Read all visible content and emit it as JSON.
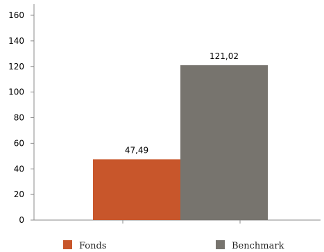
{
  "chart_data": {
    "type": "bar",
    "categories": [
      ""
    ],
    "series": [
      {
        "name": "Fonds",
        "values": [
          47.49
        ],
        "label": "47,49",
        "color": "#c8562b"
      },
      {
        "name": "Benchmark",
        "values": [
          121.02
        ],
        "label": "121,02",
        "color": "#77746e"
      }
    ],
    "title": "",
    "xlabel": "",
    "ylabel": "",
    "ylim": [
      0,
      160
    ],
    "yticks": [
      0,
      20,
      40,
      60,
      80,
      100,
      120,
      140,
      160
    ],
    "ytick_labels": [
      "0",
      "20",
      "40",
      "60",
      "80",
      "100",
      "120",
      "140",
      "160"
    ],
    "grid": false,
    "legend_position": "bottom"
  }
}
